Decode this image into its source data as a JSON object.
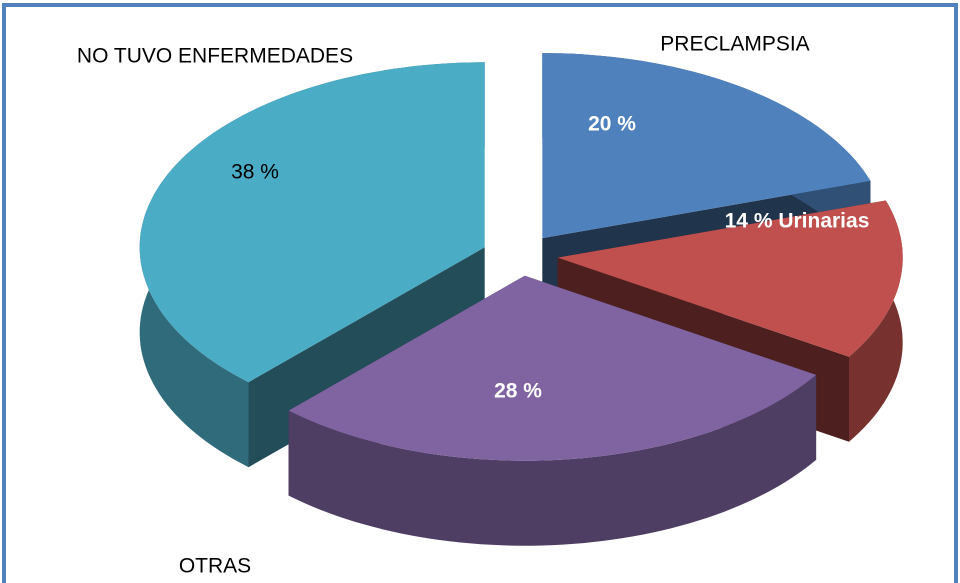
{
  "chart_data": {
    "type": "pie3d",
    "categories": [
      "PRECLAMPSIA",
      null,
      "OTRAS",
      "NO TUVO ENFERMEDADES"
    ],
    "values": [
      20,
      14,
      28,
      38
    ],
    "value_labels": [
      "20 %",
      "14 % Urinarias",
      "28 %",
      "38 %"
    ],
    "colors": [
      "#4f81bd",
      "#c0504d",
      "#8064a2",
      "#4bacc6"
    ]
  }
}
